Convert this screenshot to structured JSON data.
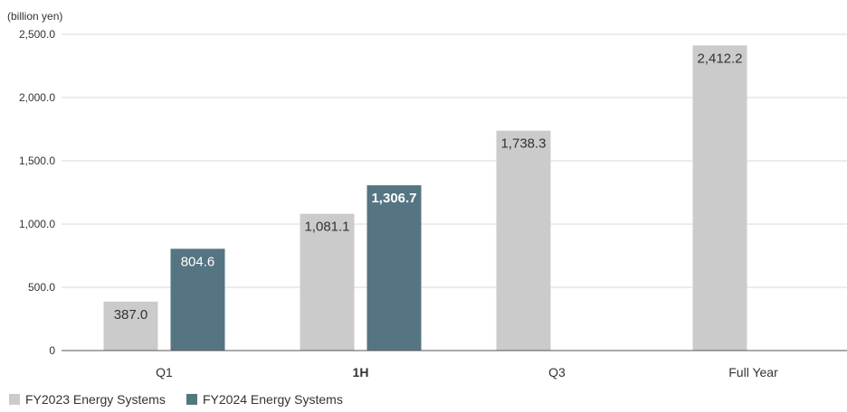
{
  "chart_data": {
    "type": "bar",
    "unit_label": "(billion yen)",
    "categories": [
      "Q1",
      "1H",
      "Q3",
      "Full Year"
    ],
    "highlight_category": "1H",
    "series": [
      {
        "name": "FY2023 Energy Systems",
        "color": "#cbcbcb",
        "label_color": "#333333",
        "values": [
          387.0,
          1081.1,
          1738.3,
          2412.2
        ],
        "labels": [
          "387.0",
          "1,081.1",
          "1,738.3",
          "2,412.2"
        ]
      },
      {
        "name": "FY2024 Energy Systems",
        "color": "#567582",
        "label_color": "#ffffff",
        "values": [
          804.6,
          1306.7,
          null,
          null
        ],
        "labels": [
          "804.6",
          "1,306.7",
          "",
          ""
        ]
      }
    ],
    "ylim": [
      0,
      2500
    ],
    "yticks": [
      0,
      500,
      1000,
      1500,
      2000,
      2500
    ],
    "ytick_labels": [
      "0",
      "500.0",
      "1,000.0",
      "1,500.0",
      "2,000.0",
      "2,500.0"
    ],
    "grid": true,
    "legend_position": "bottom-left",
    "highlight_color": "#567582"
  }
}
